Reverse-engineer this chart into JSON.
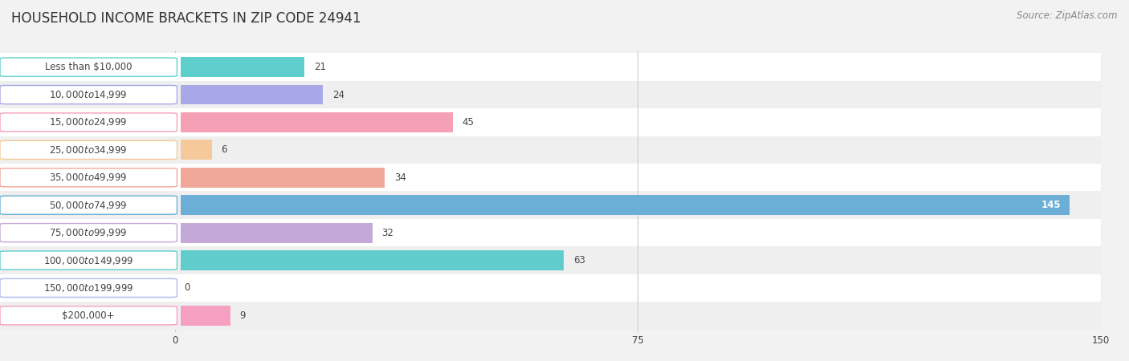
{
  "title": "HOUSEHOLD INCOME BRACKETS IN ZIP CODE 24941",
  "source": "Source: ZipAtlas.com",
  "categories": [
    "Less than $10,000",
    "$10,000 to $14,999",
    "$15,000 to $24,999",
    "$25,000 to $34,999",
    "$35,000 to $49,999",
    "$50,000 to $74,999",
    "$75,000 to $99,999",
    "$100,000 to $149,999",
    "$150,000 to $199,999",
    "$200,000+"
  ],
  "values": [
    21,
    24,
    45,
    6,
    34,
    145,
    32,
    63,
    0,
    9
  ],
  "bar_colors": [
    "#5ECFCC",
    "#A8A8E8",
    "#F5A0B5",
    "#F5C99A",
    "#F0A898",
    "#6BAED6",
    "#C4A8D8",
    "#60CCCC",
    "#B0B8F0",
    "#F5A0C0"
  ],
  "xlim_max": 150,
  "xticks": [
    0,
    75,
    150
  ],
  "bg_color": "#f2f2f2",
  "row_colors": [
    "#ffffff",
    "#efefef"
  ],
  "title_fontsize": 12,
  "label_fontsize": 8.5,
  "value_fontsize": 8.5,
  "source_fontsize": 8.5,
  "title_color": "#333333",
  "label_color": "#444444",
  "value_color_outside": "#444444",
  "value_color_inside": "#ffffff",
  "source_color": "#888888",
  "grid_color": "#cccccc"
}
